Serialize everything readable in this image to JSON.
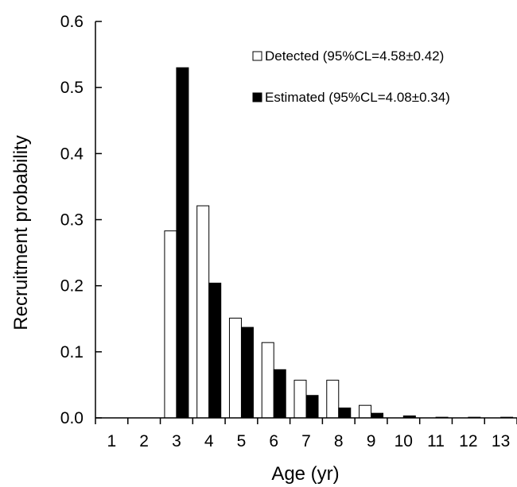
{
  "chart_data": {
    "type": "bar",
    "title": "",
    "xlabel": "Age (yr)",
    "ylabel": "Recruitment probability",
    "categories": [
      "1",
      "2",
      "3",
      "4",
      "5",
      "6",
      "7",
      "8",
      "9",
      "10",
      "11",
      "12",
      "13"
    ],
    "ylim": [
      0,
      0.6
    ],
    "yticks": [
      "0.0",
      "0.1",
      "0.2",
      "0.3",
      "0.4",
      "0.5",
      "0.6"
    ],
    "grid": false,
    "legend_position": "top-right",
    "series": [
      {
        "name": "Detected (95%CL=4.58±0.42)",
        "fill": "#ffffff",
        "stroke": "#000000",
        "values": [
          0,
          0,
          0.283,
          0.321,
          0.151,
          0.114,
          0.057,
          0.057,
          0.019,
          0,
          0,
          0,
          0
        ]
      },
      {
        "name": "Estimated (95%CL=4.08±0.34)",
        "fill": "#000000",
        "stroke": "#000000",
        "values": [
          0,
          0,
          0.53,
          0.204,
          0.137,
          0.073,
          0.034,
          0.015,
          0.007,
          0.003,
          0.001,
          0.001,
          0.001
        ]
      }
    ]
  }
}
